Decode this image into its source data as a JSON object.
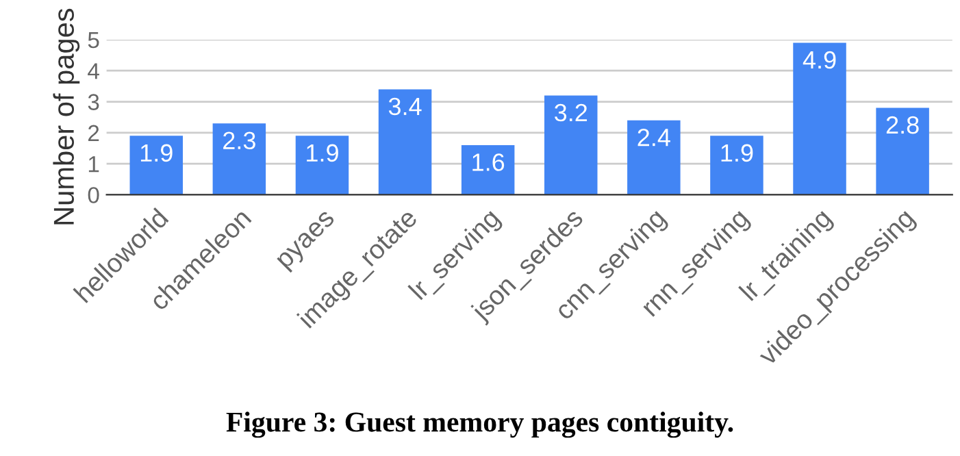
{
  "chart_data": {
    "type": "bar",
    "ylabel": "Number of pages",
    "categories": [
      "helloworld",
      "chameleon",
      "pyaes",
      "image_rotate",
      "lr_serving",
      "json_serdes",
      "cnn_serving",
      "rnn_serving",
      "lr_training",
      "video_processing"
    ],
    "values": [
      1.9,
      2.3,
      1.9,
      3.4,
      1.6,
      3.2,
      2.4,
      1.9,
      4.9,
      2.8
    ],
    "color": "#4285f4",
    "ylim": [
      0,
      5
    ],
    "yticks": [
      0,
      1,
      2,
      3,
      4,
      5
    ],
    "grid": "y",
    "data_labels": true,
    "annotations": [
      "Figure 3: Guest memory pages contiguity."
    ]
  }
}
